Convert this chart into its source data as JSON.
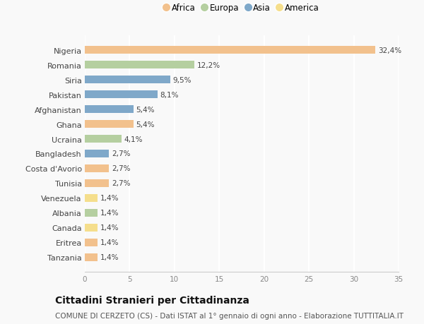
{
  "countries": [
    "Nigeria",
    "Romania",
    "Siria",
    "Pakistan",
    "Afghanistan",
    "Ghana",
    "Ucraina",
    "Bangladesh",
    "Costa d'Avorio",
    "Tunisia",
    "Venezuela",
    "Albania",
    "Canada",
    "Eritrea",
    "Tanzania"
  ],
  "values": [
    32.4,
    12.2,
    9.5,
    8.1,
    5.4,
    5.4,
    4.1,
    2.7,
    2.7,
    2.7,
    1.4,
    1.4,
    1.4,
    1.4,
    1.4
  ],
  "labels": [
    "32,4%",
    "12,2%",
    "9,5%",
    "8,1%",
    "5,4%",
    "5,4%",
    "4,1%",
    "2,7%",
    "2,7%",
    "2,7%",
    "1,4%",
    "1,4%",
    "1,4%",
    "1,4%",
    "1,4%"
  ],
  "continents": [
    "Africa",
    "Europa",
    "Asia",
    "Asia",
    "Asia",
    "Africa",
    "Europa",
    "Asia",
    "Africa",
    "Africa",
    "America",
    "Europa",
    "America",
    "Africa",
    "Africa"
  ],
  "continent_colors": {
    "Africa": "#F2C18D",
    "Europa": "#B5CFA0",
    "Asia": "#7FA8C9",
    "America": "#F5DE8C"
  },
  "legend_order": [
    "Africa",
    "Europa",
    "Asia",
    "America"
  ],
  "xlim": [
    0,
    35
  ],
  "xticks": [
    0,
    5,
    10,
    15,
    20,
    25,
    30,
    35
  ],
  "title": "Cittadini Stranieri per Cittadinanza",
  "subtitle": "COMUNE DI CERZETO (CS) - Dati ISTAT al 1° gennaio di ogni anno - Elaborazione TUTTITALIA.IT",
  "background_color": "#f9f9f9",
  "bar_height": 0.55,
  "label_fontsize": 7.5,
  "ylabel_fontsize": 8,
  "title_fontsize": 10,
  "subtitle_fontsize": 7.5,
  "legend_fontsize": 8.5
}
